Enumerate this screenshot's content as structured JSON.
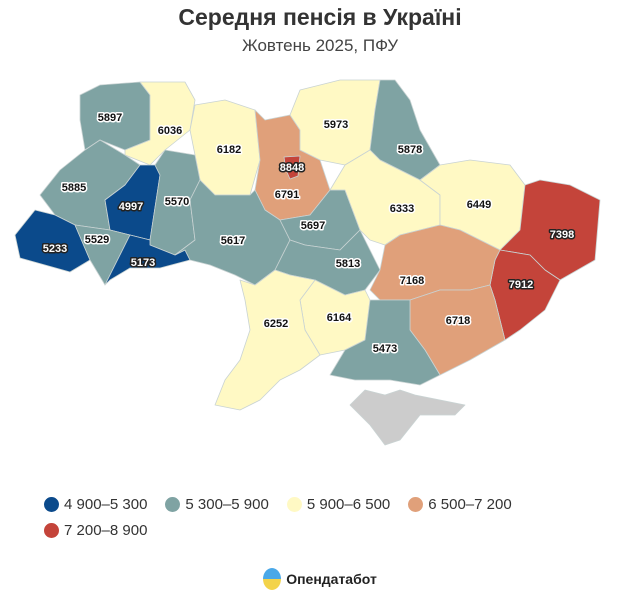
{
  "header": {
    "title": "Середня пенсія в Україні",
    "subtitle": "Жовтень 2025, ПФУ"
  },
  "map": {
    "regions": [
      {
        "value": "5897",
        "bin": 1
      },
      {
        "value": "6036",
        "bin": 2
      },
      {
        "value": "6182",
        "bin": 2
      },
      {
        "value": "6791",
        "bin": 3
      },
      {
        "value": "5973",
        "bin": 2
      },
      {
        "value": "5878",
        "bin": 1
      },
      {
        "value": "5885",
        "bin": 1
      },
      {
        "value": "4997",
        "bin": 0
      },
      {
        "value": "5570",
        "bin": 1
      },
      {
        "value": "5233",
        "bin": 0
      },
      {
        "value": "5529",
        "bin": 1
      },
      {
        "value": "5173",
        "bin": 0
      },
      {
        "value": "5617",
        "bin": 1
      },
      {
        "value": "5697",
        "bin": 1
      },
      {
        "value": "5813",
        "bin": 1
      },
      {
        "value": "6333",
        "bin": 2
      },
      {
        "value": "6449",
        "bin": 2
      },
      {
        "value": "7398",
        "bin": 4
      },
      {
        "value": "7912",
        "bin": 4
      },
      {
        "value": "7168",
        "bin": 3
      },
      {
        "value": "6718",
        "bin": 3
      },
      {
        "value": "6164",
        "bin": 2
      },
      {
        "value": "6252",
        "bin": 2
      },
      {
        "value": "5473",
        "bin": 1
      },
      {
        "value": "8848",
        "bin": 4
      },
      {
        "value": "",
        "bin": -1
      }
    ],
    "no_data_color": "#cccccc"
  },
  "legend": [
    {
      "label": "4 900–5 300",
      "color": "#0b4a8b"
    },
    {
      "label": "5 300–5 900",
      "color": "#7fa3a3"
    },
    {
      "label": "5 900–6 500",
      "color": "#fff9c4"
    },
    {
      "label": "6 500–7 200",
      "color": "#e0a07a"
    },
    {
      "label": "7 200–8 900",
      "color": "#c4443a"
    }
  ],
  "footer": {
    "brand": "Опендатабот"
  }
}
